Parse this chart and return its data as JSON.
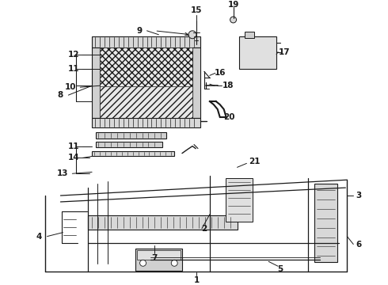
{
  "background_color": "#ffffff",
  "line_color": "#1a1a1a",
  "fig_width": 4.9,
  "fig_height": 3.6,
  "dpi": 100,
  "label_fontsize": 7.5,
  "label_bold": true
}
